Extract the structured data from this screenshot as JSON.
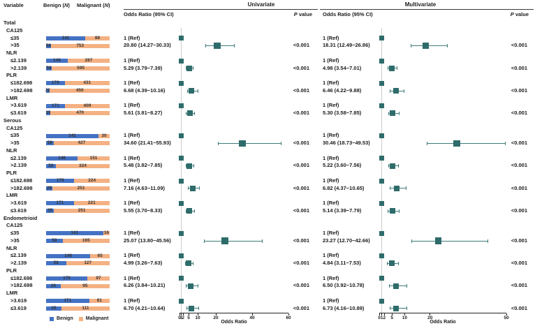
{
  "figure": {
    "column_headers": {
      "variable": "Variable",
      "benign_pre": "Benign (",
      "benign_n": "N",
      "paren_close": ")",
      "malignant_pre": "Malignant (",
      "malignant_n": "N"
    },
    "panel_titles": {
      "univariate": "Univariate",
      "multivariate": "Multivariate"
    },
    "or_header": "Odds Ratio (95% CI)",
    "p_header_italic": "P",
    "p_header_rest": " value"
  },
  "legend": {
    "benign": "Benign",
    "malignant": "Malignant"
  },
  "colors": {
    "benign_bar": "#4472C4",
    "malignant_bar": "#F4B183",
    "marker": "#2E6C6B",
    "whisker": "#3D7A79",
    "ref_line": "#CCCCCC",
    "axis": "#222222",
    "bar_label": "#333333"
  },
  "chart_data": {
    "type": "forest-plot-with-stacked-bars",
    "bar_mode": "100%-stacked",
    "bar_series": [
      "Benign",
      "Malignant"
    ],
    "axes": {
      "univariate": {
        "label": "Odds Ratio",
        "scale": "linear",
        "min": 0,
        "max": 60,
        "ticks": [
          0,
          1,
          2,
          5,
          10,
          20,
          40,
          60
        ],
        "ref_line_at": 1
      },
      "multivariate": {
        "label": "Odds Ratio",
        "scale": "linear",
        "min": 0,
        "max": 50,
        "ticks": [
          0,
          1,
          2,
          5,
          10,
          20,
          50
        ],
        "ref_line_at": 1
      }
    },
    "sections": [
      {
        "name": "Total",
        "groups": [
          {
            "name": "CA125",
            "rows": [
              {
                "label": "≤35",
                "benign": 141,
                "malignant": 88,
                "uni": {
                  "text": "1 (Ref)",
                  "ref": true
                },
                "multi": {
                  "text": "1 (Ref)",
                  "ref": true
                }
              },
              {
                "label": ">35",
                "benign": 58,
                "malignant": 753,
                "big": true,
                "uni": {
                  "text": "20.80 (14.27−30.33)",
                  "or": 20.8,
                  "lo": 14.27,
                  "hi": 30.33,
                  "p": "<0.001"
                },
                "multi": {
                  "text": "18.31 (12.49−26.86)",
                  "or": 18.31,
                  "lo": 12.49,
                  "hi": 26.86,
                  "p": "<0.001"
                }
              }
            ]
          },
          {
            "name": "NLR",
            "rows": [
              {
                "label": "≤2.139",
                "benign": 148,
                "malignant": 287,
                "uni": {
                  "text": "1 (Ref)",
                  "ref": true
                },
                "multi": {
                  "text": "1 (Ref)",
                  "ref": true
                }
              },
              {
                "label": ">2.139",
                "benign": 58,
                "malignant": 595,
                "uni": {
                  "text": "5.29 (3.79−7.39)",
                  "or": 5.29,
                  "lo": 3.79,
                  "hi": 7.39,
                  "p": "<0.001"
                },
                "multi": {
                  "text": "4.98 (3.54−7.01)",
                  "or": 4.98,
                  "lo": 3.54,
                  "hi": 7.01,
                  "p": "<0.001"
                }
              }
            ]
          },
          {
            "name": "PLR",
            "rows": [
              {
                "label": "≤182.698",
                "benign": 179,
                "malignant": 431,
                "uni": {
                  "text": "1 (Ref)",
                  "ref": true
                },
                "multi": {
                  "text": "1 (Ref)",
                  "ref": true
                }
              },
              {
                "label": ">182.698",
                "benign": 28,
                "malignant": 450,
                "uni": {
                  "text": "6.68 (4.39−10.16)",
                  "or": 6.68,
                  "lo": 4.39,
                  "hi": 10.16,
                  "p": "<0.001"
                },
                "multi": {
                  "text": "6.46 (4.22−9.88)",
                  "or": 6.46,
                  "lo": 4.22,
                  "hi": 9.88,
                  "p": "<0.001"
                }
              }
            ]
          },
          {
            "name": "LMR",
            "rows": [
              {
                "label": ">3.619",
                "benign": 171,
                "malignant": 409,
                "uni": {
                  "text": "1 (Ref)",
                  "ref": true
                },
                "multi": {
                  "text": "1 (Ref)",
                  "ref": true
                }
              },
              {
                "label": "≤3.619",
                "benign": 35,
                "malignant": 470,
                "uni": {
                  "text": "5.61 (3.81−8.27)",
                  "or": 5.61,
                  "lo": 3.81,
                  "hi": 8.27,
                  "p": "<0.001"
                },
                "multi": {
                  "text": "5.30 (3.58−7.85)",
                  "or": 5.3,
                  "lo": 3.58,
                  "hi": 7.85,
                  "p": "<0.001"
                }
              }
            ]
          }
        ]
      },
      {
        "name": "Serous",
        "groups": [
          {
            "name": "CA125",
            "rows": [
              {
                "label": "≤35",
                "benign": 141,
                "malignant": 30,
                "uni": {
                  "text": "1 (Ref)",
                  "ref": true
                },
                "multi": {
                  "text": "1 (Ref)",
                  "ref": true
                }
              },
              {
                "label": ">35",
                "benign": 58,
                "malignant": 427,
                "big": true,
                "uni": {
                  "text": "34.60 (21.41−55.93)",
                  "or": 34.6,
                  "lo": 21.41,
                  "hi": 55.93,
                  "p": "<0.001"
                },
                "multi": {
                  "text": "30.46 (18.73−49.53)",
                  "or": 30.46,
                  "lo": 18.73,
                  "hi": 49.53,
                  "p": "<0.001"
                }
              }
            ]
          },
          {
            "name": "NLR",
            "rows": [
              {
                "label": "≤2.139",
                "benign": 148,
                "malignant": 151,
                "uni": {
                  "text": "1 (Ref)",
                  "ref": true
                },
                "multi": {
                  "text": "1 (Ref)",
                  "ref": true
                }
              },
              {
                "label": ">2.139",
                "benign": 58,
                "malignant": 324,
                "uni": {
                  "text": "5.48 (3.82−7.85)",
                  "or": 5.48,
                  "lo": 3.82,
                  "hi": 7.85,
                  "p": "<0.001"
                },
                "multi": {
                  "text": "5.22 (3.60−7.56)",
                  "or": 5.22,
                  "lo": 3.6,
                  "hi": 7.56,
                  "p": "<0.001"
                }
              }
            ]
          },
          {
            "name": "PLR",
            "rows": [
              {
                "label": "≤182.698",
                "benign": 179,
                "malignant": 224,
                "uni": {
                  "text": "1 (Ref)",
                  "ref": true
                },
                "multi": {
                  "text": "1 (Ref)",
                  "ref": true
                }
              },
              {
                "label": ">182.698",
                "benign": 28,
                "malignant": 251,
                "uni": {
                  "text": "7.16 (4.63−11.09)",
                  "or": 7.16,
                  "lo": 4.63,
                  "hi": 11.09,
                  "p": "<0.001"
                },
                "multi": {
                  "text": "6.82 (4.37−10.65)",
                  "or": 6.82,
                  "lo": 4.37,
                  "hi": 10.65,
                  "p": "<0.001"
                }
              }
            ]
          },
          {
            "name": "LMR",
            "rows": [
              {
                "label": ">3.619",
                "benign": 171,
                "malignant": 221,
                "uni": {
                  "text": "1 (Ref)",
                  "ref": true
                },
                "multi": {
                  "text": "1 (Ref)",
                  "ref": true
                }
              },
              {
                "label": "≤3.619",
                "benign": 35,
                "malignant": 251,
                "uni": {
                  "text": "5.55 (3.70−8.33)",
                  "or": 5.55,
                  "lo": 3.7,
                  "hi": 8.33,
                  "p": "<0.001"
                },
                "multi": {
                  "text": "5.14 (3.39−7.79)",
                  "or": 5.14,
                  "lo": 3.39,
                  "hi": 7.79,
                  "p": "<0.001"
                }
              }
            ]
          }
        ]
      },
      {
        "name": "Endometrioid",
        "groups": [
          {
            "name": "CA125",
            "rows": [
              {
                "label": "≤35",
                "benign": 141,
                "malignant": 16,
                "uni": {
                  "text": "1 (Ref)",
                  "ref": true
                },
                "multi": {
                  "text": "1 (Ref)",
                  "ref": true
                }
              },
              {
                "label": ">35",
                "benign": 58,
                "malignant": 165,
                "big": true,
                "uni": {
                  "text": "25.07 (13.80−45.56)",
                  "or": 25.07,
                  "lo": 13.8,
                  "hi": 45.56,
                  "p": "<0.001"
                },
                "multi": {
                  "text": "23.27 (12.70−42.66)",
                  "or": 23.27,
                  "lo": 12.7,
                  "hi": 42.66,
                  "p": "<0.001"
                }
              }
            ]
          },
          {
            "name": "NLR",
            "rows": [
              {
                "label": "≤2.139",
                "benign": 148,
                "malignant": 65,
                "uni": {
                  "text": "1 (Ref)",
                  "ref": true
                },
                "multi": {
                  "text": "1 (Ref)",
                  "ref": true
                }
              },
              {
                "label": ">2.139",
                "benign": 58,
                "malignant": 127,
                "uni": {
                  "text": "4.99 (3.26−7.63)",
                  "or": 4.99,
                  "lo": 3.26,
                  "hi": 7.63,
                  "p": "<0.001"
                },
                "multi": {
                  "text": "4.84 (3.11−7.53)",
                  "or": 4.84,
                  "lo": 3.11,
                  "hi": 7.53,
                  "p": "<0.001"
                }
              }
            ]
          },
          {
            "name": "PLR",
            "rows": [
              {
                "label": "≤182.698",
                "benign": 179,
                "malignant": 97,
                "uni": {
                  "text": "1 (Ref)",
                  "ref": true
                },
                "multi": {
                  "text": "1 (Ref)",
                  "ref": true
                }
              },
              {
                "label": ">182.698",
                "benign": 28,
                "malignant": 95,
                "uni": {
                  "text": "6.26 (3.84−10.21)",
                  "or": 6.26,
                  "lo": 3.84,
                  "hi": 10.21,
                  "p": "<0.001"
                },
                "multi": {
                  "text": "6.50 (3.92−10.78)",
                  "or": 6.5,
                  "lo": 3.92,
                  "hi": 10.78,
                  "p": "<0.001"
                }
              }
            ]
          },
          {
            "name": "LMR",
            "rows": [
              {
                "label": ">3.619",
                "benign": 171,
                "malignant": 81,
                "uni": {
                  "text": "1 (Ref)",
                  "ref": true
                },
                "multi": {
                  "text": "1 (Ref)",
                  "ref": true
                }
              },
              {
                "label": "≤3.619",
                "benign": 35,
                "malignant": 111,
                "uni": {
                  "text": "6.70 (4.21−10.64)",
                  "or": 6.7,
                  "lo": 4.21,
                  "hi": 10.64,
                  "p": "<0.001"
                },
                "multi": {
                  "text": "6.73 (4.16−10.89)",
                  "or": 6.73,
                  "lo": 4.16,
                  "hi": 10.89,
                  "p": "<0.001"
                }
              }
            ]
          }
        ]
      }
    ]
  }
}
